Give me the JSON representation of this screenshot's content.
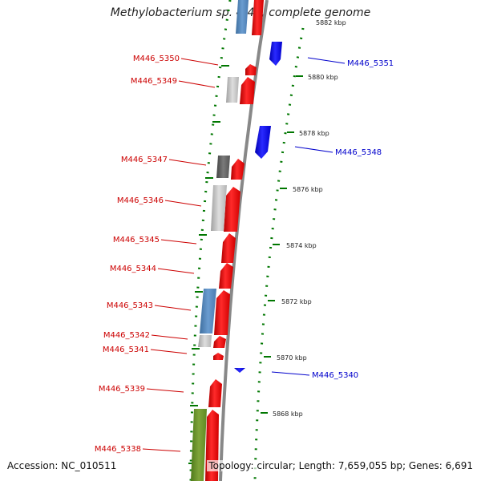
{
  "title": "Methylobacterium sp. 4-46, complete genome",
  "accession": "Accession: NC_010511",
  "topology": "Topology: circular; Length: 7,659,055 bp; Genes: 6,691",
  "colors": {
    "forward_gene": "#ff0000",
    "reverse_gene": "#0000ff",
    "label_red": "#cc0000",
    "label_blue": "#0000cc",
    "tick": "#007700",
    "backbone": "#888888"
  },
  "ticks": [
    "5882 kbp",
    "5880 kbp",
    "5878 kbp",
    "5876 kbp",
    "5874 kbp",
    "5872 kbp",
    "5870 kbp",
    "5868 kbp"
  ],
  "left_labels": [
    "M446_5350",
    "M446_5349",
    "M446_5347",
    "M446_5346",
    "M446_5345",
    "M446_5344",
    "M446_5343",
    "M446_5342",
    "M446_5341",
    "M446_5339",
    "M446_5338"
  ],
  "right_labels": [
    "M446_5351",
    "M446_5348",
    "M446_5340"
  ]
}
